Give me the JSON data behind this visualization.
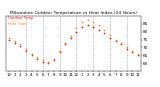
{
  "title": "Milwaukee Outdoor Temperature vs Heat Index (24 Hours)",
  "title_fontsize": 3.2,
  "title_color": "#000000",
  "bg_color": "#ffffff",
  "plot_bg_color": "#ffffff",
  "grid_color": "#888888",
  "temp_color": "#ff0000",
  "heat_color": "#ff8800",
  "tick_fontsize": 3.0,
  "hours": [
    0,
    1,
    2,
    3,
    4,
    5,
    6,
    7,
    8,
    9,
    10,
    11,
    12,
    13,
    14,
    15,
    16,
    17,
    18,
    19,
    20,
    21,
    22,
    23
  ],
  "temperature": [
    75,
    73,
    71,
    68,
    65,
    63,
    61,
    60,
    62,
    67,
    72,
    76,
    80,
    83,
    84,
    83,
    81,
    79,
    76,
    74,
    72,
    69,
    67,
    65
  ],
  "heat_index": [
    76,
    74,
    72,
    69,
    66,
    64,
    62,
    61,
    63,
    68,
    73,
    77,
    82,
    86,
    87,
    86,
    84,
    81,
    78,
    75,
    73,
    70,
    68,
    66
  ],
  "ylim": [
    55,
    90
  ],
  "yticks": [
    60,
    65,
    70,
    75,
    80,
    85
  ],
  "xtick_labels": [
    "12",
    "1",
    "2",
    "3",
    "4",
    "5",
    "6",
    "7",
    "8",
    "9",
    "10",
    "11",
    "12",
    "1",
    "2",
    "3",
    "4",
    "5",
    "6",
    "7",
    "8",
    "9",
    "10",
    "11"
  ],
  "legend_temp": "Outdoor Temp",
  "legend_heat": "Heat Index",
  "marker_size": 1.5,
  "vgrid_positions": [
    3,
    6,
    9,
    12,
    15,
    18,
    21
  ]
}
